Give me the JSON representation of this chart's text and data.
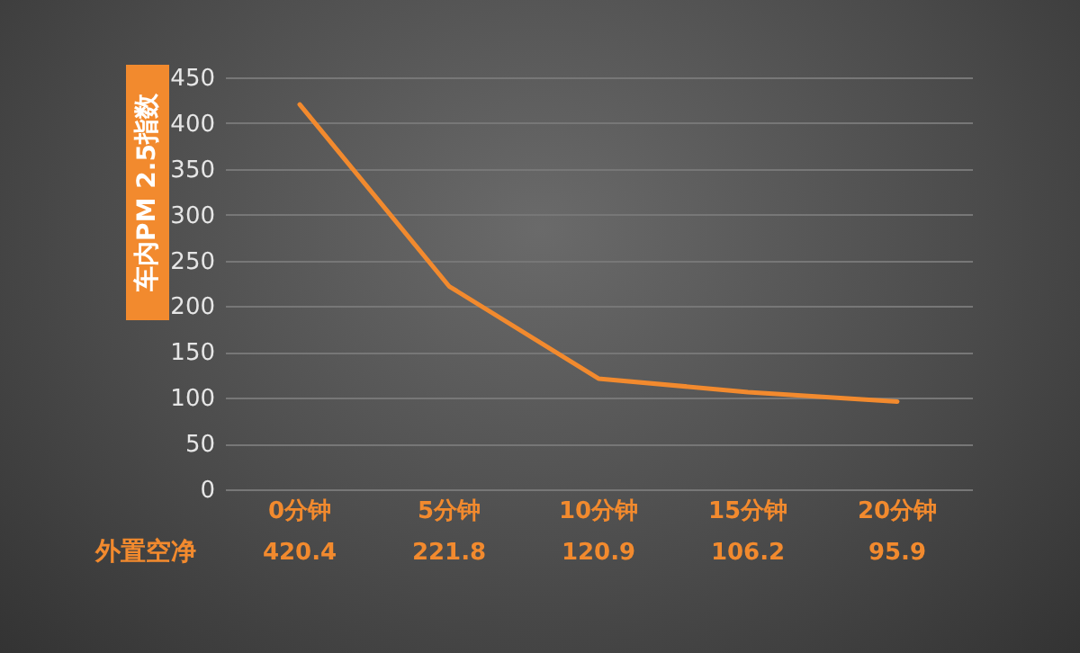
{
  "chart_data": {
    "type": "line",
    "ylabel": "车内PM 2.5指数",
    "categories": [
      "0分钟",
      "5分钟",
      "10分钟",
      "15分钟",
      "20分钟"
    ],
    "series": [
      {
        "name": "外置空净",
        "color": "#f28a2e",
        "values": [
          420.4,
          221.8,
          120.9,
          106.2,
          95.9
        ]
      }
    ],
    "ylim": [
      0,
      450
    ],
    "yticks": [
      0,
      50,
      100,
      150,
      200,
      250,
      300,
      350,
      400,
      450
    ],
    "grid": "y",
    "data_labels": true,
    "marker": "none"
  }
}
